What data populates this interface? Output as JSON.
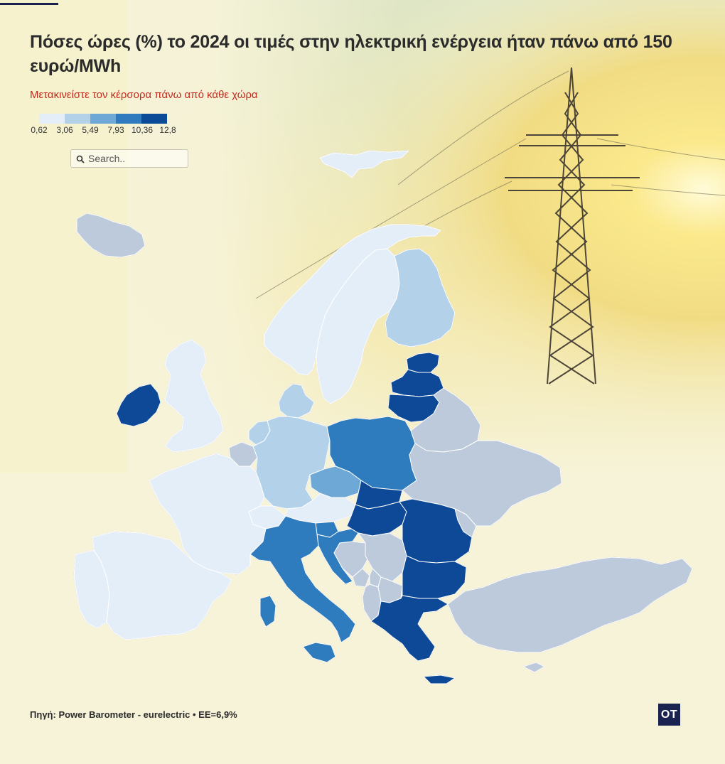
{
  "header": {
    "title": "Πόσες ώρες (%) το 2024 οι τιμές στην ηλεκτρική ενέργεια ήταν πάνω από 150 ευρώ/MWh",
    "subtitle": "Μετακινείστε τον κέρσορα πάνω από κάθε χώρα"
  },
  "legend": {
    "ticks": [
      "0,62",
      "3,06",
      "5,49",
      "7,93",
      "10,36",
      "12,8"
    ],
    "colors": [
      "#e4eef8",
      "#b3d2ea",
      "#6ea8d6",
      "#2f7bbd",
      "#0b4a96"
    ]
  },
  "search": {
    "placeholder": "Search..",
    "value": ""
  },
  "colors": {
    "background": "#f6f3d8",
    "no_data": "#bccadb",
    "title": "#2b2b2b",
    "subtitle": "#c6281c",
    "logo": "#1a2350"
  },
  "map": {
    "countries": [
      {
        "name": "Iceland",
        "bin": -1
      },
      {
        "name": "Norway",
        "bin": 0
      },
      {
        "name": "Sweden",
        "bin": 0
      },
      {
        "name": "Finland",
        "bin": 1
      },
      {
        "name": "Estonia",
        "bin": 4
      },
      {
        "name": "Latvia",
        "bin": 4
      },
      {
        "name": "Lithuania",
        "bin": 4
      },
      {
        "name": "Ireland",
        "bin": 4
      },
      {
        "name": "United Kingdom",
        "bin": 0
      },
      {
        "name": "Denmark",
        "bin": 1
      },
      {
        "name": "Netherlands",
        "bin": 1
      },
      {
        "name": "Belgium",
        "bin": -1
      },
      {
        "name": "Germany",
        "bin": 1
      },
      {
        "name": "Poland",
        "bin": 3
      },
      {
        "name": "Czechia",
        "bin": 2
      },
      {
        "name": "Austria",
        "bin": 0
      },
      {
        "name": "Switzerland",
        "bin": 0
      },
      {
        "name": "France",
        "bin": 0
      },
      {
        "name": "Spain",
        "bin": 0
      },
      {
        "name": "Portugal",
        "bin": 0
      },
      {
        "name": "Italy",
        "bin": 3
      },
      {
        "name": "Slovenia",
        "bin": 3
      },
      {
        "name": "Croatia",
        "bin": 3
      },
      {
        "name": "Hungary",
        "bin": 4
      },
      {
        "name": "Slovakia",
        "bin": 4
      },
      {
        "name": "Romania",
        "bin": 4
      },
      {
        "name": "Bulgaria",
        "bin": 4
      },
      {
        "name": "Greece",
        "bin": 4
      },
      {
        "name": "Serbia",
        "bin": -1
      },
      {
        "name": "Bosnia and Herzegovina",
        "bin": -1
      },
      {
        "name": "Montenegro",
        "bin": -1
      },
      {
        "name": "Albania",
        "bin": -1
      },
      {
        "name": "North Macedonia",
        "bin": -1
      },
      {
        "name": "Kosovo",
        "bin": -1
      },
      {
        "name": "Belarus",
        "bin": -1
      },
      {
        "name": "Ukraine",
        "bin": -1
      },
      {
        "name": "Moldova",
        "bin": -1
      },
      {
        "name": "Turkey",
        "bin": -1
      },
      {
        "name": "Cyprus",
        "bin": -1
      },
      {
        "name": "Svalbard",
        "bin": 0
      }
    ]
  },
  "footer": {
    "source": "Πηγή: Power Barometer - eurelectric • ΕΕ=6,9%",
    "logo": "ΟΤ"
  }
}
